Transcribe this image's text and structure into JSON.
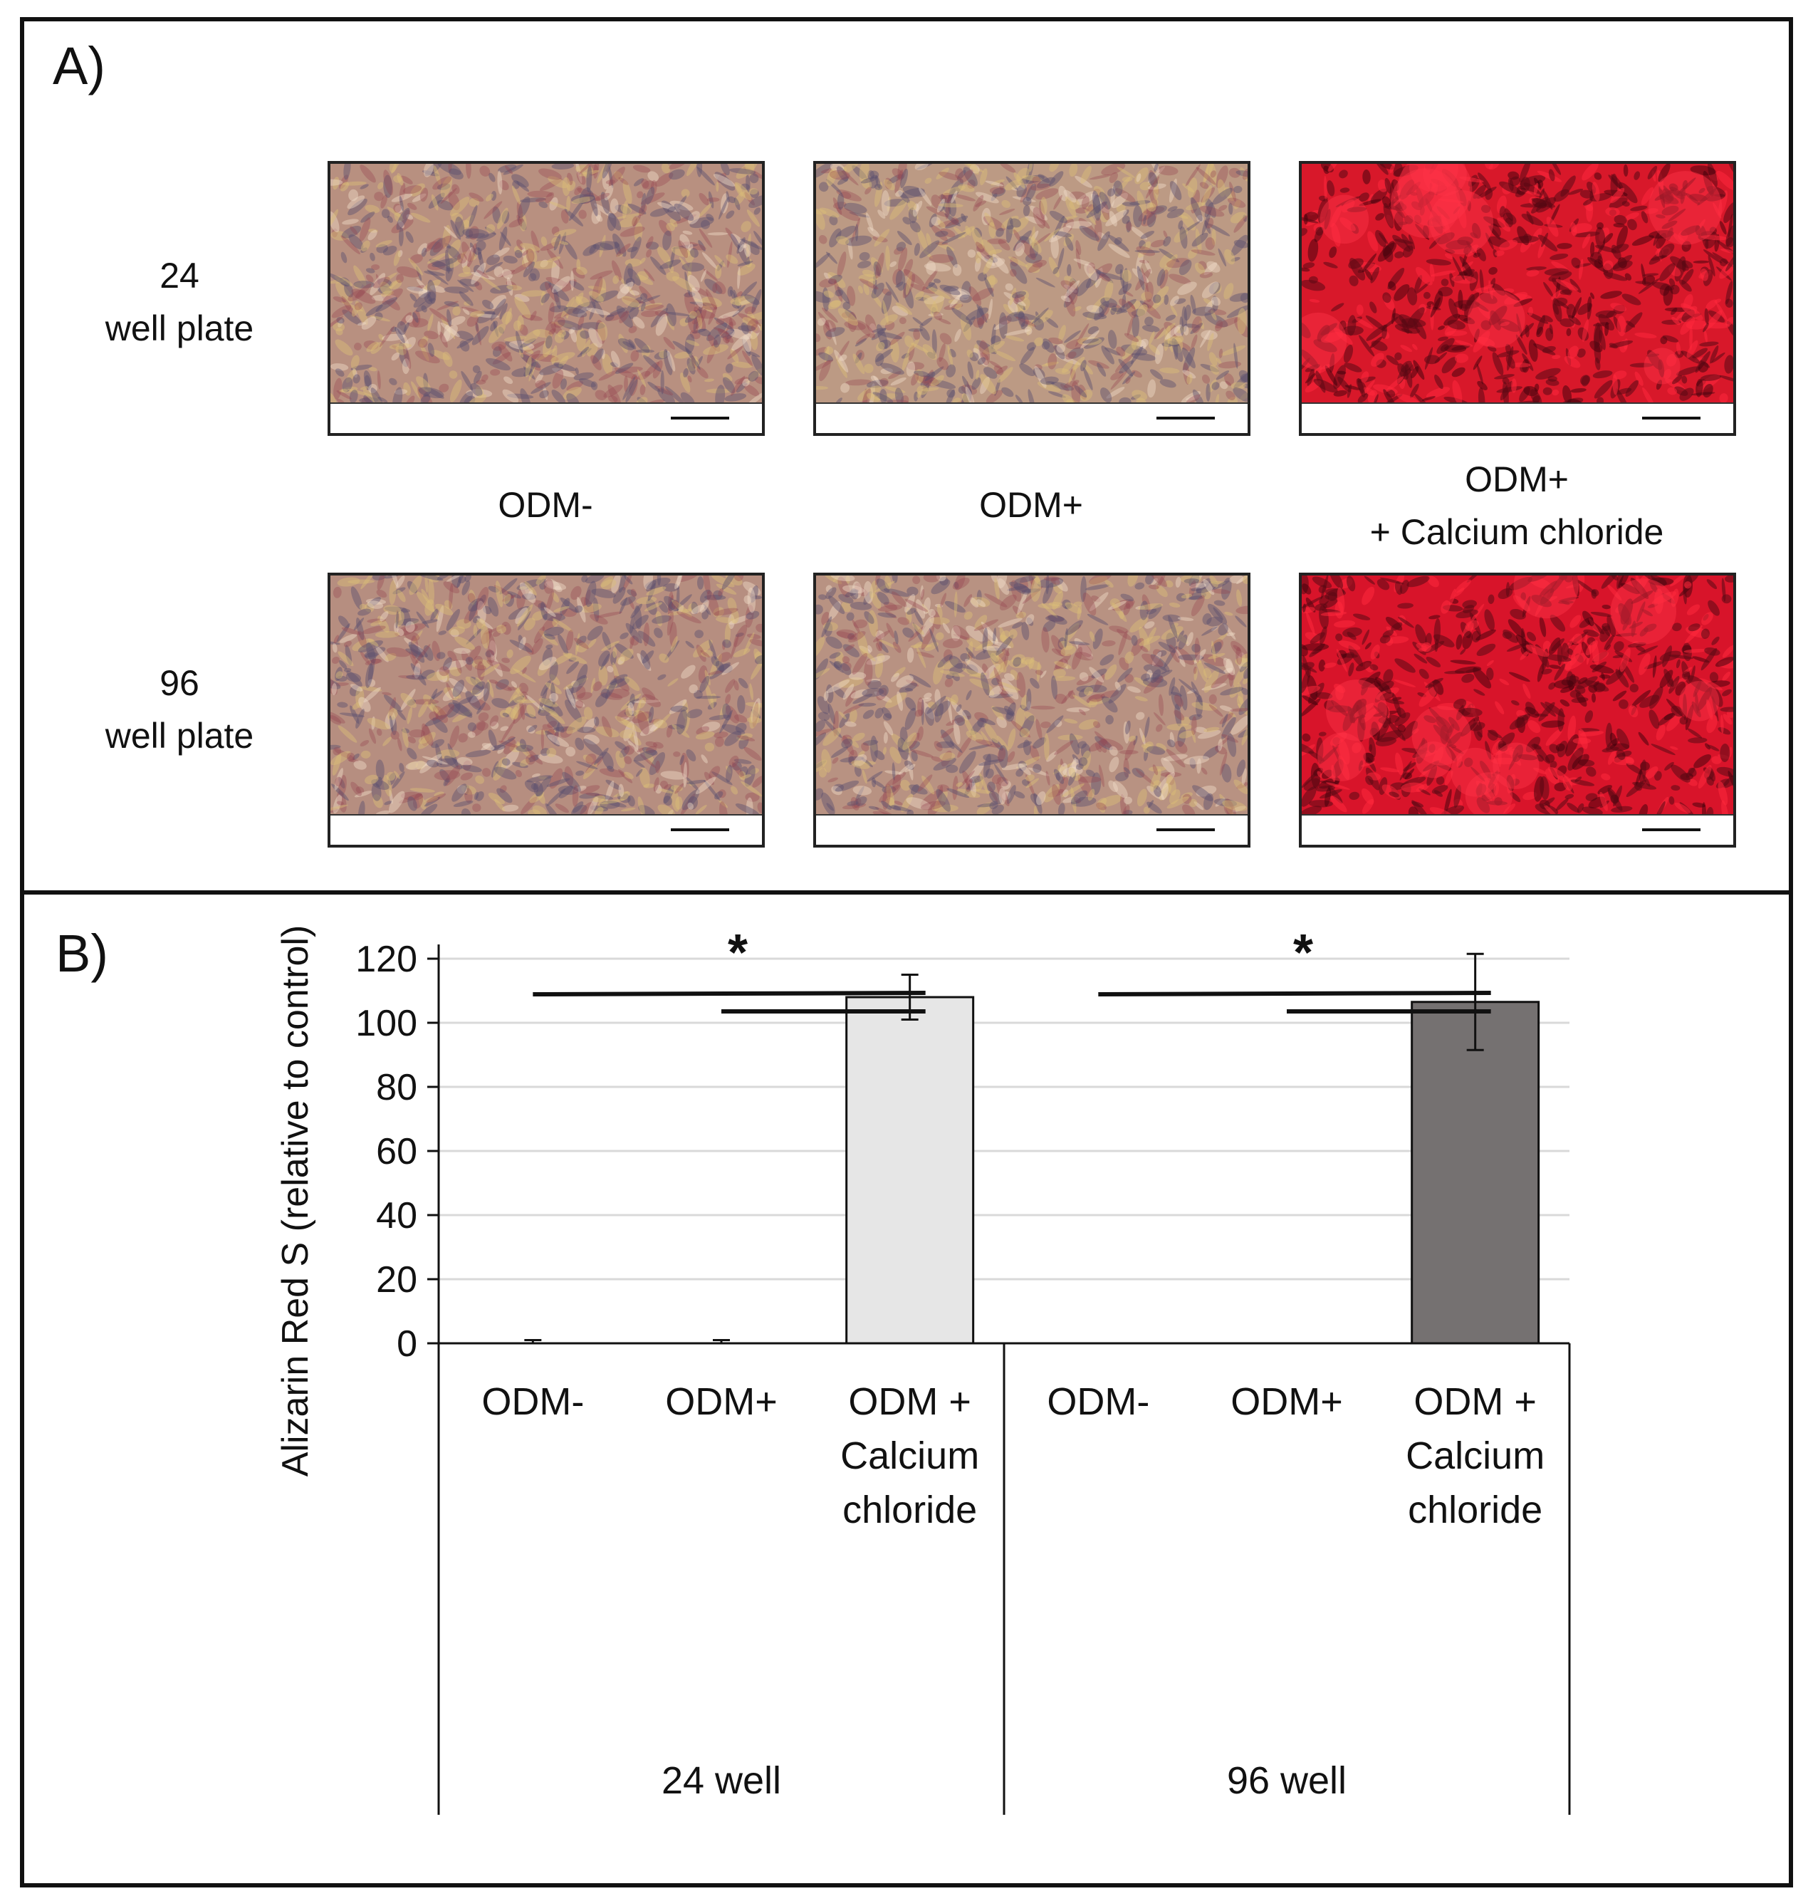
{
  "panel_a": {
    "label": "A)",
    "rows": [
      {
        "label": "24\nwell plate"
      },
      {
        "label": "96\nwell plate"
      }
    ],
    "columns": [
      {
        "label": "ODM-"
      },
      {
        "label": "ODM+"
      },
      {
        "label": "ODM+\n+ Calcium chloride"
      }
    ],
    "images": [
      {
        "row": "24 well plate",
        "condition": "ODM-",
        "stain": "pale",
        "base_color": "#b89080"
      },
      {
        "row": "24 well plate",
        "condition": "ODM+",
        "stain": "pale",
        "base_color": "#bc9a84"
      },
      {
        "row": "24 well plate",
        "condition": "ODM+ + Calcium chloride",
        "stain": "red",
        "base_color": "#d8182a"
      },
      {
        "row": "96 well plate",
        "condition": "ODM-",
        "stain": "pale",
        "base_color": "#b68e80"
      },
      {
        "row": "96 well plate",
        "condition": "ODM+",
        "stain": "pale",
        "base_color": "#b89282"
      },
      {
        "row": "96 well plate",
        "condition": "ODM+ + Calcium chloride",
        "stain": "red",
        "base_color": "#d8142a"
      }
    ]
  },
  "panel_b": {
    "label": "B)"
  },
  "chart_data": {
    "type": "bar",
    "ylabel": "Alizarin Red S (relative to control)",
    "ylim": [
      0,
      120
    ],
    "yticks": [
      0,
      20,
      40,
      60,
      80,
      100,
      120
    ],
    "grid": true,
    "groups": [
      {
        "name": "24 well",
        "categories": [
          "ODM-",
          "ODM+",
          "ODM +\nCalcium\nchloride"
        ],
        "values": [
          0,
          0,
          108
        ],
        "errors": [
          1,
          1,
          7
        ],
        "color": "#e6e6e6"
      },
      {
        "name": "96 well",
        "categories": [
          "ODM-",
          "ODM+",
          "ODM +\nCalcium\nchloride"
        ],
        "values": [
          0,
          0,
          106.5
        ],
        "errors": [
          0,
          0,
          15
        ],
        "color": "#757171"
      }
    ],
    "significance": [
      {
        "group": "24 well",
        "label": "*"
      },
      {
        "group": "96 well",
        "label": "*"
      }
    ]
  }
}
